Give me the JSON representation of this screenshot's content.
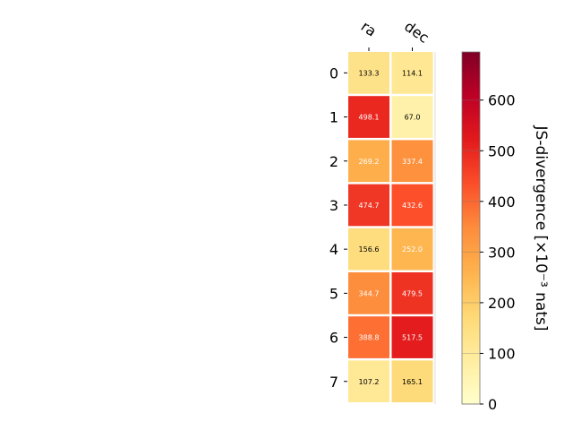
{
  "chart_data": {
    "type": "heatmap",
    "columns": [
      "ra",
      "dec"
    ],
    "rows": [
      "0",
      "1",
      "2",
      "3",
      "4",
      "5",
      "6",
      "7"
    ],
    "values": [
      [
        133.3,
        114.1
      ],
      [
        498.1,
        67.0
      ],
      [
        269.2,
        337.4
      ],
      [
        474.7,
        432.6
      ],
      [
        156.6,
        252.0
      ],
      [
        344.7,
        479.5
      ],
      [
        388.8,
        517.5
      ],
      [
        107.2,
        165.1
      ]
    ],
    "value_labels": [
      [
        "133.3",
        "114.1"
      ],
      [
        "498.1",
        "67.0"
      ],
      [
        "269.2",
        "337.4"
      ],
      [
        "474.7",
        "432.6"
      ],
      [
        "156.6",
        "252.0"
      ],
      [
        "344.7",
        "479.5"
      ],
      [
        "388.8",
        "517.5"
      ],
      [
        "107.2",
        "165.1"
      ]
    ],
    "colormap": "YlOrRd",
    "colorbar": {
      "label": "JS-divergence [×10⁻³ nats]",
      "range": [
        0,
        695
      ],
      "ticks": [
        0,
        100,
        200,
        300,
        400,
        500,
        600
      ],
      "tick_labels": [
        "0",
        "100",
        "200",
        "300",
        "400",
        "500",
        "600"
      ]
    }
  }
}
